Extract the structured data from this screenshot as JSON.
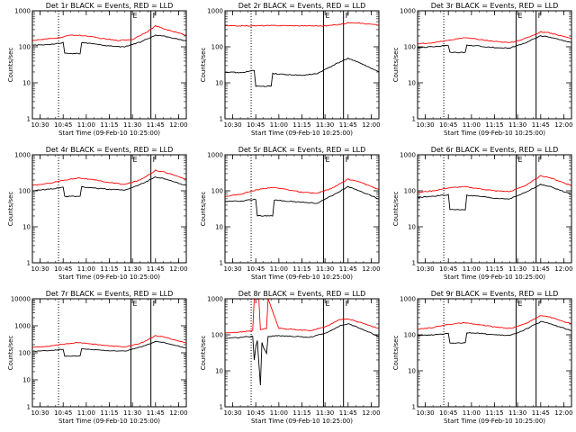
{
  "figure": {
    "background": "#ffffff",
    "colors": {
      "events": "#000000",
      "lld": "#ff0000",
      "axes": "#000000"
    }
  },
  "chart_data": [
    {
      "type": "line",
      "title": "Det 1r BLACK = Events, RED = LLD",
      "xlabel": "Start Time (09-Feb-10 10:25:00)",
      "ylabel": "Counts/sec",
      "xticks": [
        "10:30",
        "10:45",
        "11:00",
        "11:15",
        "11:30",
        "11:45",
        "12:00"
      ],
      "yscale": "log",
      "ylim": [
        1,
        1000
      ],
      "yticks": [
        "1",
        "10",
        "100",
        "1000"
      ],
      "markers": [
        {
          "label": "E",
          "time": "11:29"
        },
        {
          "label": "F",
          "time": "11:42"
        }
      ],
      "series": [
        {
          "name": "LLD",
          "color": "red",
          "x": [
            "10:25",
            "10:35",
            "10:45",
            "10:50",
            "11:00",
            "11:10",
            "11:20",
            "11:30",
            "11:40",
            "11:45",
            "11:50",
            "12:05"
          ],
          "y": [
            150,
            165,
            185,
            215,
            200,
            170,
            150,
            160,
            270,
            380,
            320,
            210
          ]
        },
        {
          "name": "Events",
          "color": "black",
          "x": [
            "10:25",
            "10:35",
            "10:45",
            "10:46",
            "10:56",
            "10:57",
            "11:05",
            "11:15",
            "11:25",
            "11:35",
            "11:45",
            "11:50",
            "12:05"
          ],
          "y": [
            110,
            115,
            130,
            65,
            65,
            130,
            120,
            105,
            100,
            135,
            210,
            200,
            145
          ]
        }
      ]
    },
    {
      "type": "line",
      "title": "Det 2r BLACK = Events, RED = LLD",
      "xlabel": "Start Time (09-Feb-10 10:25:00)",
      "ylabel": "Counts/sec",
      "xticks": [
        "10:30",
        "10:45",
        "11:00",
        "11:15",
        "11:30",
        "11:45",
        "12:00"
      ],
      "yscale": "log",
      "ylim": [
        1,
        1000
      ],
      "yticks": [
        "1",
        "10",
        "100",
        "1000"
      ],
      "markers": [
        {
          "label": "E",
          "time": "11:29"
        },
        {
          "label": "F",
          "time": "11:42"
        }
      ],
      "series": [
        {
          "name": "LLD",
          "color": "red",
          "x": [
            "10:25",
            "10:45",
            "11:00",
            "11:15",
            "11:30",
            "11:40",
            "11:47",
            "12:05"
          ],
          "y": [
            380,
            385,
            390,
            385,
            380,
            420,
            480,
            400
          ]
        },
        {
          "name": "Events",
          "color": "black",
          "x": [
            "10:25",
            "10:35",
            "10:44",
            "10:45",
            "10:55",
            "10:56",
            "11:05",
            "11:15",
            "11:25",
            "11:35",
            "11:45",
            "11:50",
            "12:05"
          ],
          "y": [
            20,
            19,
            22,
            8,
            8,
            18,
            17,
            16,
            18,
            30,
            48,
            40,
            20
          ]
        }
      ]
    },
    {
      "type": "line",
      "title": "Det 3r BLACK = Events, RED = LLD",
      "xlabel": "Start Time (09-Feb-10 10:25:00)",
      "ylabel": "Counts/sec",
      "xticks": [
        "10:30",
        "10:45",
        "11:00",
        "11:15",
        "11:30",
        "11:45",
        "12:00"
      ],
      "yscale": "log",
      "ylim": [
        1,
        1000
      ],
      "yticks": [
        "1",
        "10",
        "100",
        "1000"
      ],
      "markers": [
        {
          "label": "E",
          "time": "11:29"
        },
        {
          "label": "F",
          "time": "11:42"
        }
      ],
      "series": [
        {
          "name": "LLD",
          "color": "red",
          "x": [
            "10:25",
            "10:35",
            "10:45",
            "10:55",
            "11:05",
            "11:15",
            "11:25",
            "11:35",
            "11:45",
            "11:50",
            "12:05"
          ],
          "y": [
            120,
            130,
            150,
            180,
            160,
            140,
            130,
            170,
            260,
            250,
            170
          ]
        },
        {
          "name": "Events",
          "color": "black",
          "x": [
            "10:25",
            "10:35",
            "10:45",
            "10:46",
            "10:56",
            "10:57",
            "11:05",
            "11:15",
            "11:25",
            "11:35",
            "11:45",
            "11:50",
            "12:05"
          ],
          "y": [
            95,
            100,
            110,
            70,
            70,
            110,
            105,
            95,
            92,
            130,
            200,
            190,
            130
          ]
        }
      ]
    },
    {
      "type": "line",
      "title": "Det 4r BLACK = Events, RED = LLD",
      "xlabel": "Start Time (09-Feb-10 10:25:00)",
      "ylabel": "Counts/sec",
      "xticks": [
        "10:30",
        "10:45",
        "11:00",
        "11:15",
        "11:30",
        "11:45",
        "12:00"
      ],
      "yscale": "log",
      "ylim": [
        1,
        1000
      ],
      "yticks": [
        "1",
        "10",
        "100",
        "1000"
      ],
      "markers": [
        {
          "label": "E",
          "time": "11:29"
        },
        {
          "label": "F",
          "time": "11:42"
        }
      ],
      "series": [
        {
          "name": "LLD",
          "color": "red",
          "x": [
            "10:25",
            "10:35",
            "10:45",
            "10:55",
            "11:05",
            "11:15",
            "11:25",
            "11:35",
            "11:45",
            "11:50",
            "12:05"
          ],
          "y": [
            140,
            160,
            195,
            230,
            200,
            170,
            150,
            200,
            370,
            340,
            210
          ]
        },
        {
          "name": "Events",
          "color": "black",
          "x": [
            "10:25",
            "10:35",
            "10:45",
            "10:46",
            "10:56",
            "10:57",
            "11:05",
            "11:15",
            "11:25",
            "11:35",
            "11:45",
            "11:50",
            "12:05"
          ],
          "y": [
            100,
            110,
            125,
            70,
            70,
            130,
            120,
            110,
            105,
            150,
            240,
            220,
            140
          ]
        }
      ]
    },
    {
      "type": "line",
      "title": "Det 5r BLACK = Events, RED = LLD",
      "xlabel": "Start Time (09-Feb-10 10:25:00)",
      "ylabel": "Counts/sec",
      "xticks": [
        "10:30",
        "10:45",
        "11:00",
        "11:15",
        "11:30",
        "11:45",
        "12:00"
      ],
      "yscale": "log",
      "ylim": [
        1,
        1000
      ],
      "yticks": [
        "1",
        "10",
        "100",
        "1000"
      ],
      "markers": [
        {
          "label": "E",
          "time": "11:29"
        },
        {
          "label": "F",
          "time": "11:42"
        }
      ],
      "series": [
        {
          "name": "LLD",
          "color": "red",
          "x": [
            "10:25",
            "10:35",
            "10:45",
            "10:55",
            "11:05",
            "11:15",
            "11:25",
            "11:35",
            "11:45",
            "11:50",
            "12:05"
          ],
          "y": [
            70,
            80,
            105,
            125,
            110,
            90,
            85,
            120,
            210,
            190,
            110
          ]
        },
        {
          "name": "Events",
          "color": "black",
          "x": [
            "10:25",
            "10:35",
            "10:45",
            "10:46",
            "10:56",
            "10:57",
            "11:05",
            "11:15",
            "11:25",
            "11:35",
            "11:45",
            "11:50",
            "12:05"
          ],
          "y": [
            50,
            52,
            58,
            20,
            20,
            55,
            52,
            48,
            45,
            75,
            130,
            110,
            60
          ]
        }
      ]
    },
    {
      "type": "line",
      "title": "Det 6r BLACK = Events, RED = LLD",
      "xlabel": "Start Time (09-Feb-10 10:25:00)",
      "ylabel": "Counts/sec",
      "xticks": [
        "10:30",
        "10:45",
        "11:00",
        "11:15",
        "11:30",
        "11:45",
        "12:00"
      ],
      "yscale": "log",
      "ylim": [
        1,
        1000
      ],
      "yticks": [
        "1",
        "10",
        "100",
        "1000"
      ],
      "markers": [
        {
          "label": "E",
          "time": "11:29"
        },
        {
          "label": "F",
          "time": "11:42"
        }
      ],
      "series": [
        {
          "name": "LLD",
          "color": "red",
          "x": [
            "10:25",
            "10:35",
            "10:45",
            "10:55",
            "11:05",
            "11:15",
            "11:25",
            "11:35",
            "11:45",
            "11:50",
            "12:05"
          ],
          "y": [
            90,
            100,
            120,
            130,
            115,
            100,
            95,
            140,
            260,
            240,
            140
          ]
        },
        {
          "name": "Events",
          "color": "black",
          "x": [
            "10:25",
            "10:35",
            "10:45",
            "10:46",
            "10:56",
            "10:57",
            "11:05",
            "11:15",
            "11:25",
            "11:35",
            "11:45",
            "11:50",
            "12:05"
          ],
          "y": [
            65,
            70,
            78,
            30,
            30,
            75,
            70,
            62,
            60,
            90,
            150,
            135,
            80
          ]
        }
      ]
    },
    {
      "type": "line",
      "title": "Det 7r BLACK = Events, RED = LLD",
      "xlabel": "Start Time (09-Feb-10 10:25:00)",
      "ylabel": "Counts/sec",
      "xticks": [
        "10:30",
        "10:45",
        "11:00",
        "11:15",
        "11:30",
        "11:45",
        "12:00"
      ],
      "yscale": "log",
      "ylim": [
        1,
        10000
      ],
      "yticks": [
        "1",
        "10",
        "100",
        "1000",
        "10000"
      ],
      "markers": [
        {
          "label": "E",
          "time": "11:29"
        },
        {
          "label": "F",
          "time": "11:42"
        }
      ],
      "series": [
        {
          "name": "LLD",
          "color": "red",
          "x": [
            "10:25",
            "10:35",
            "10:45",
            "10:55",
            "11:05",
            "11:15",
            "11:25",
            "11:35",
            "11:45",
            "11:50",
            "12:05"
          ],
          "y": [
            160,
            175,
            210,
            240,
            210,
            180,
            165,
            220,
            430,
            390,
            230
          ]
        },
        {
          "name": "Events",
          "color": "black",
          "x": [
            "10:25",
            "10:35",
            "10:45",
            "10:46",
            "10:56",
            "10:57",
            "11:05",
            "11:15",
            "11:25",
            "11:35",
            "11:45",
            "11:50",
            "12:05"
          ],
          "y": [
            115,
            120,
            135,
            75,
            75,
            140,
            130,
            120,
            115,
            160,
            260,
            240,
            150
          ]
        }
      ]
    },
    {
      "type": "line",
      "title": "Det 8r BLACK = Events, RED = LLD",
      "xlabel": "Start Time (09-Feb-10 10:25:00)",
      "ylabel": "Counts/sec",
      "xticks": [
        "10:30",
        "10:45",
        "11:00",
        "11:15",
        "11:30",
        "11:45",
        "12:00"
      ],
      "yscale": "log",
      "ylim": [
        1,
        1000
      ],
      "yticks": [
        "1",
        "10",
        "100",
        "1000"
      ],
      "markers": [
        {
          "label": "E",
          "time": "11:29"
        },
        {
          "label": "F",
          "time": "11:42"
        }
      ],
      "series": [
        {
          "name": "LLD",
          "color": "red",
          "x": [
            "10:25",
            "10:35",
            "10:43",
            "10:44",
            "10:47",
            "10:48",
            "10:52",
            "10:53",
            "11:00",
            "11:10",
            "11:20",
            "11:30",
            "11:40",
            "11:45",
            "11:50",
            "12:05"
          ],
          "y": [
            110,
            120,
            130,
            1000,
            1000,
            140,
            150,
            1000,
            150,
            140,
            130,
            165,
            270,
            280,
            240,
            150
          ]
        },
        {
          "name": "Events",
          "color": "black",
          "x": [
            "10:25",
            "10:35",
            "10:43",
            "10:44",
            "10:45",
            "10:46",
            "10:48",
            "10:49",
            "10:50",
            "10:52",
            "10:53",
            "11:00",
            "11:10",
            "11:20",
            "11:30",
            "11:40",
            "11:45",
            "11:50",
            "12:05"
          ],
          "y": [
            80,
            85,
            90,
            20,
            45,
            70,
            4,
            60,
            45,
            30,
            90,
            95,
            90,
            85,
            110,
            180,
            200,
            170,
            90
          ]
        }
      ]
    },
    {
      "type": "line",
      "title": "Det 9r BLACK = Events, RED = LLD",
      "xlabel": "Start Time (09-Feb-10 10:25:00)",
      "ylabel": "Counts/sec",
      "xticks": [
        "10:30",
        "10:45",
        "11:00",
        "11:15",
        "11:30",
        "11:45",
        "12:00"
      ],
      "yscale": "log",
      "ylim": [
        1,
        1000
      ],
      "yticks": [
        "1",
        "10",
        "100",
        "1000"
      ],
      "markers": [
        {
          "label": "E",
          "time": "11:29"
        },
        {
          "label": "F",
          "time": "11:42"
        }
      ],
      "series": [
        {
          "name": "LLD",
          "color": "red",
          "x": [
            "10:25",
            "10:35",
            "10:45",
            "10:55",
            "11:05",
            "11:15",
            "11:25",
            "11:35",
            "11:45",
            "11:50",
            "12:05"
          ],
          "y": [
            140,
            160,
            195,
            215,
            190,
            165,
            150,
            200,
            350,
            320,
            200
          ]
        },
        {
          "name": "Events",
          "color": "black",
          "x": [
            "10:25",
            "10:35",
            "10:45",
            "10:46",
            "10:56",
            "10:57",
            "11:05",
            "11:15",
            "11:25",
            "11:35",
            "11:45",
            "11:50",
            "12:05"
          ],
          "y": [
            95,
            100,
            110,
            60,
            60,
            115,
            110,
            100,
            95,
            140,
            230,
            210,
            130
          ]
        }
      ]
    }
  ]
}
